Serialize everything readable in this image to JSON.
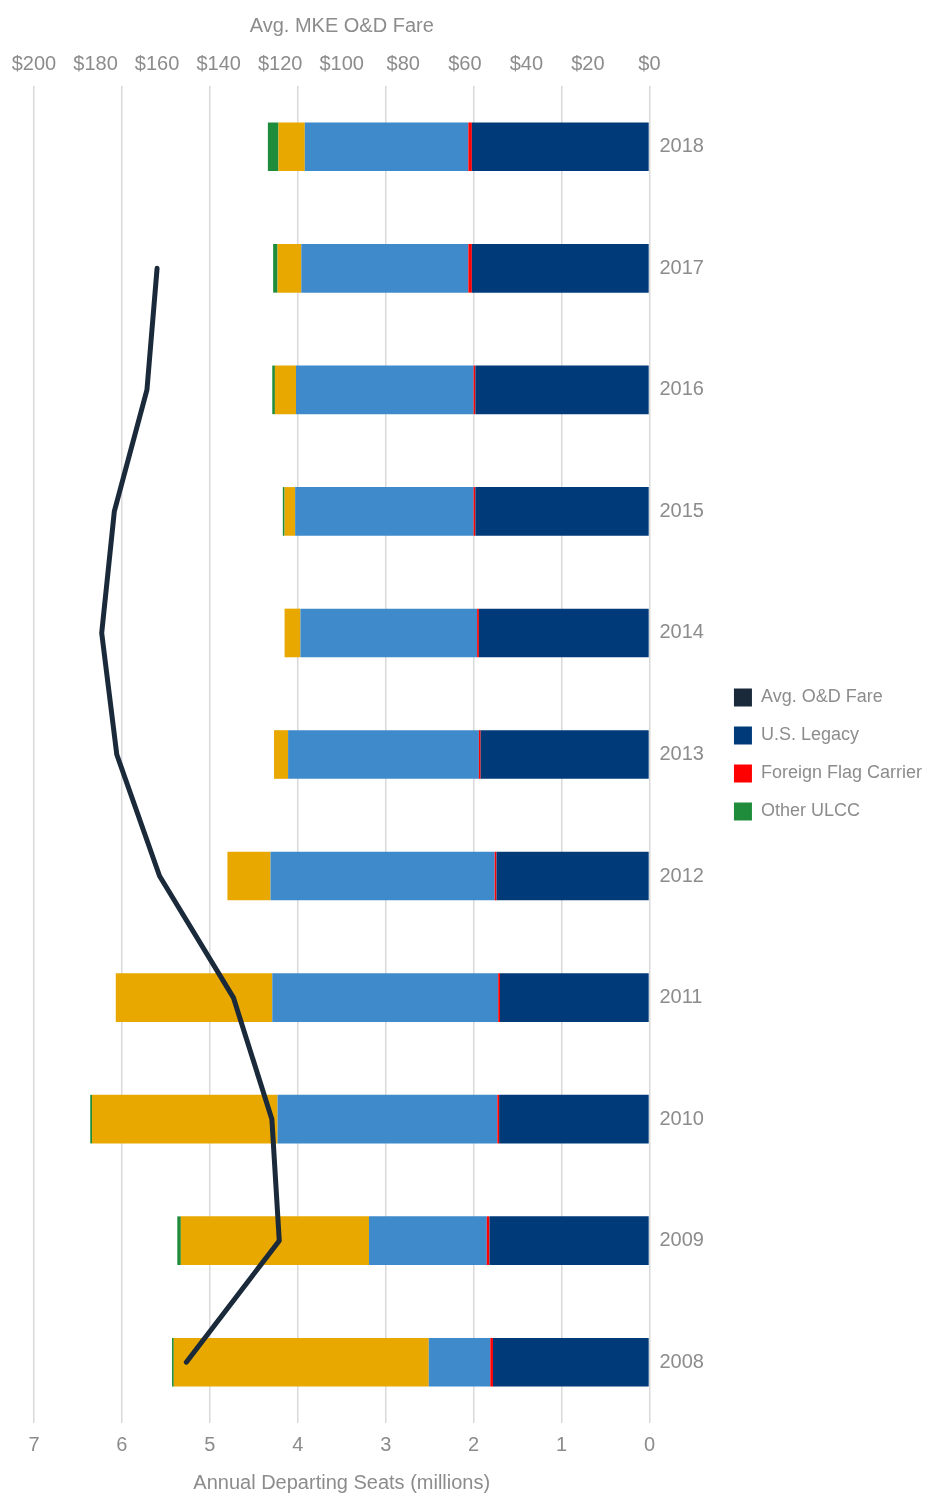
{
  "chart_data": {
    "type": "bar",
    "stacked": true,
    "orientation": "horizontal",
    "categories": [
      "2018",
      "2017",
      "2016",
      "2015",
      "2014",
      "2013",
      "2012",
      "2011",
      "2010",
      "2009",
      "2008"
    ],
    "xlabel": "Annual Departing Seats (millions)",
    "x2label": "Avg. MKE O&D Fare",
    "xlim": [
      7,
      0
    ],
    "xticks": [
      0,
      1,
      2,
      3,
      4,
      5,
      6,
      7
    ],
    "x2lim": [
      200,
      0
    ],
    "x2ticks": [
      {
        "value": 0,
        "label": "$0"
      },
      {
        "value": 20,
        "label": "$20"
      },
      {
        "value": 40,
        "label": "$40"
      },
      {
        "value": 60,
        "label": "$60"
      },
      {
        "value": 80,
        "label": "$80"
      },
      {
        "value": 100,
        "label": "$100"
      },
      {
        "value": 120,
        "label": "$120"
      },
      {
        "value": 140,
        "label": "$140"
      },
      {
        "value": 160,
        "label": "$160"
      },
      {
        "value": 180,
        "label": "$180"
      },
      {
        "value": 200,
        "label": "$200"
      }
    ],
    "grid": "x",
    "legend": "right",
    "marker": "none",
    "series": [
      {
        "name": "U.S. Legacy",
        "color": "#003a78",
        "values": [
          2.02,
          2.02,
          1.98,
          1.98,
          1.94,
          1.92,
          1.74,
          1.7,
          1.71,
          1.82,
          1.78
        ]
      },
      {
        "name": "Foreign Flag Carrier",
        "color": "#ff0000",
        "values": [
          0.04,
          0.04,
          0.02,
          0.02,
          0.02,
          0.02,
          0.02,
          0.02,
          0.02,
          0.03,
          0.03
        ]
      },
      {
        "color": "#3f8acb",
        "values": [
          1.86,
          1.9,
          2.02,
          2.03,
          2.01,
          2.17,
          2.55,
          2.57,
          2.5,
          1.34,
          0.7
        ]
      },
      {
        "color": "#e8a800",
        "values": [
          0.3,
          0.27,
          0.24,
          0.12,
          0.18,
          0.16,
          0.49,
          1.78,
          2.11,
          2.14,
          2.9
        ]
      },
      {
        "name": "Other ULCC",
        "color": "#1e8c3a",
        "values": [
          0.12,
          0.05,
          0.03,
          0.02,
          0,
          0,
          0,
          0,
          0.02,
          0.04,
          0.02
        ]
      },
      {
        "name": "Avg. O&D Fare",
        "type": "line",
        "axis": "x2",
        "color": "#1b2a3a",
        "values": [
          null,
          160,
          163.3,
          173.9,
          178,
          173.1,
          159.2,
          135.2,
          122.7,
          120.3,
          150.5
        ]
      }
    ]
  }
}
